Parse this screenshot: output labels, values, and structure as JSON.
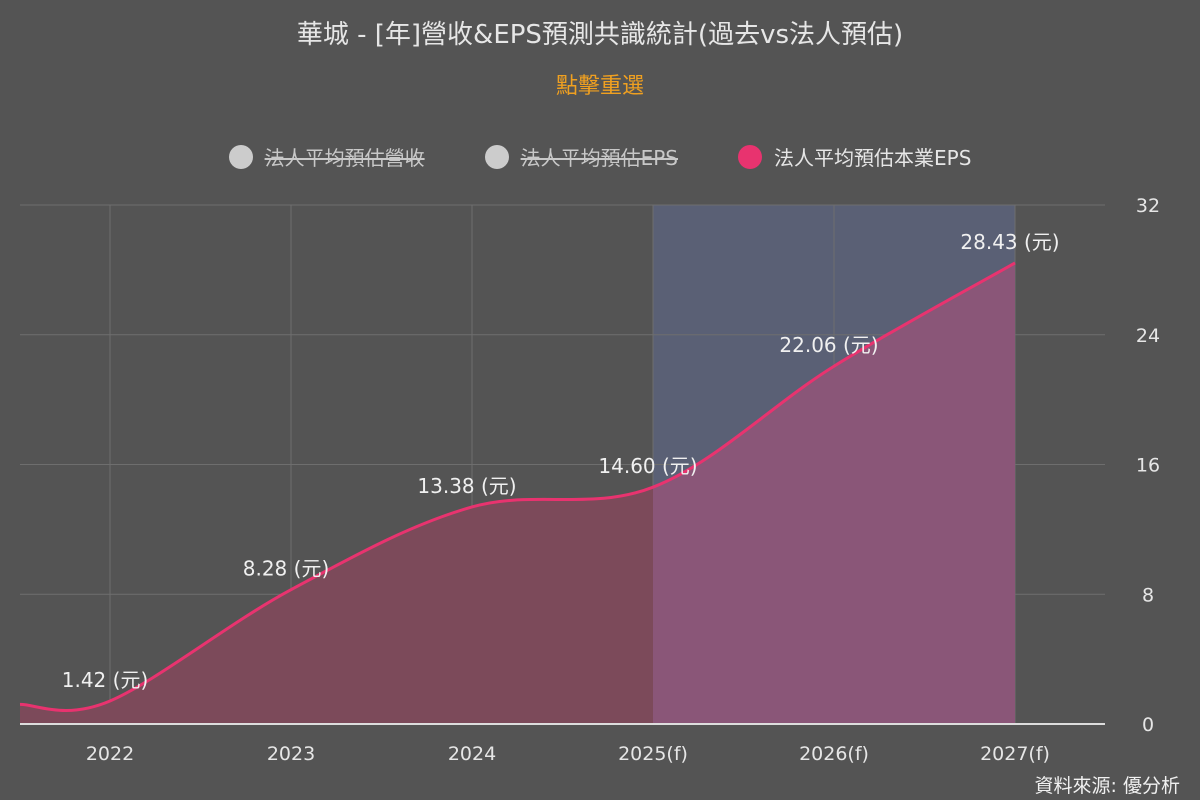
{
  "title": "華城 - [年]營收&EPS預測共識統計(過去vs法人預估)",
  "subtitle": "點擊重選",
  "source": "資料來源: 優分析",
  "legend": [
    {
      "label": "法人平均預估營收",
      "enabled": false,
      "color": "#cccccc"
    },
    {
      "label": "法人平均預估EPS",
      "enabled": false,
      "color": "#cccccc"
    },
    {
      "label": "法人平均預估本業EPS",
      "enabled": true,
      "color": "#e8336f"
    }
  ],
  "chart_data": {
    "type": "area",
    "categories": [
      "2022",
      "2023",
      "2024",
      "2025(f)",
      "2026(f)",
      "2027(f)"
    ],
    "series": [
      {
        "name": "法人平均預估本業EPS",
        "values": [
          1.42,
          8.28,
          13.38,
          14.6,
          22.06,
          28.43
        ],
        "color": "#e8336f"
      }
    ],
    "data_labels": [
      "1.42 (元)",
      "8.28 (元)",
      "13.38 (元)",
      "14.60 (元)",
      "22.06 (元)",
      "28.43 (元)"
    ],
    "forecast_band": [
      "2025(f)",
      "2027(f)"
    ],
    "y_axis": {
      "position": "right",
      "ylim": [
        0,
        32
      ],
      "ticks": [
        "0",
        "8",
        "16",
        "24",
        "32"
      ]
    },
    "grid": true
  }
}
